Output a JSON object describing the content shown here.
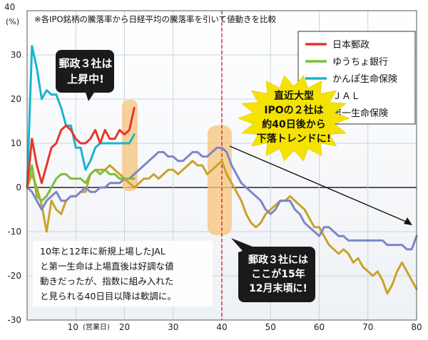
{
  "chart_data": {
    "type": "line",
    "title": "",
    "subtitle": "※各IPO銘柄の騰落率から日経平均の騰落率を引いて値動きを比較",
    "ylabel": "(%)",
    "xlabel": "(営業日)",
    "ylim": [
      -30,
      40
    ],
    "xlim": [
      0,
      80
    ],
    "yticks": [
      -30,
      -20,
      -10,
      0,
      10,
      20,
      30,
      40
    ],
    "xticks": [
      10,
      20,
      30,
      40,
      50,
      60,
      70,
      80
    ],
    "grid": true,
    "legend": "top-right",
    "series": [
      {
        "name": "日本郵政",
        "color": "#e8352b",
        "x": [
          0,
          1,
          2,
          3,
          4,
          5,
          6,
          7,
          8,
          9,
          10,
          11,
          12,
          13,
          14,
          15,
          16,
          17,
          18,
          19,
          20,
          21,
          22
        ],
        "y": [
          0,
          11,
          5,
          1,
          5,
          9,
          10,
          13,
          14,
          13,
          11,
          10,
          10,
          11,
          13,
          10,
          13,
          11,
          11,
          13,
          12,
          13,
          18
        ]
      },
      {
        "name": "ゆうちょ銀行",
        "color": "#7cbf3a",
        "x": [
          0,
          1,
          2,
          3,
          4,
          5,
          6,
          7,
          8,
          9,
          10,
          11,
          12,
          13,
          14,
          15,
          16,
          17,
          18,
          19,
          20,
          21,
          22
        ],
        "y": [
          0,
          5,
          -2,
          -3,
          -2,
          0,
          2,
          3,
          3,
          2,
          2,
          2,
          1,
          3,
          4,
          3,
          4,
          3,
          3,
          2,
          2,
          2,
          2
        ]
      },
      {
        "name": "かんぽ生命保険",
        "color": "#19b4cf",
        "x": [
          0,
          1,
          2,
          3,
          4,
          5,
          6,
          7,
          8,
          9,
          10,
          11,
          12,
          13,
          14,
          15,
          16,
          17,
          18,
          19,
          20,
          21,
          22
        ],
        "y": [
          0,
          32,
          27,
          20,
          22,
          21,
          21,
          18,
          14,
          14,
          9,
          9,
          4,
          6,
          9,
          10,
          10,
          10,
          10,
          10,
          10,
          10,
          12
        ]
      },
      {
        "name": "ＪＡＬ",
        "color": "#c9a22a",
        "x": [
          0,
          1,
          2,
          3,
          4,
          5,
          6,
          7,
          8,
          9,
          10,
          11,
          12,
          13,
          14,
          15,
          16,
          17,
          18,
          19,
          20,
          21,
          22,
          23,
          24,
          25,
          26,
          27,
          28,
          29,
          30,
          31,
          32,
          33,
          34,
          35,
          36,
          37,
          38,
          39,
          40,
          41,
          42,
          43,
          44,
          45,
          46,
          47,
          48,
          49,
          50,
          51,
          52,
          53,
          54,
          55,
          56,
          57,
          58,
          59,
          60,
          61,
          62,
          63,
          64,
          65,
          66,
          67,
          68,
          69,
          70,
          71,
          72,
          73,
          74,
          75,
          76,
          77,
          78,
          79,
          80
        ],
        "y": [
          0,
          3,
          0,
          -4,
          -10,
          -3,
          -5,
          -6,
          -3,
          -2,
          -2,
          -1,
          -1,
          3,
          4,
          4,
          4,
          5,
          4,
          3,
          2,
          1,
          0,
          1,
          2,
          2,
          3,
          2,
          3,
          4,
          4,
          3,
          4,
          5,
          6,
          5,
          5,
          3,
          4,
          5,
          6,
          3,
          1,
          -1,
          -3,
          -6,
          -8,
          -9,
          -8,
          -6,
          -5,
          -4,
          -3,
          -3,
          -2,
          -3,
          -4,
          -5,
          -7,
          -9,
          -9,
          -11,
          -13,
          -14,
          -15,
          -14,
          -15,
          -17,
          -16,
          -18,
          -19,
          -20,
          -19,
          -21,
          -24,
          -22,
          -19,
          -17,
          -19,
          -21,
          -23
        ]
      },
      {
        "name": "第一生命保険",
        "color": "#7d86c8",
        "x": [
          0,
          1,
          2,
          3,
          4,
          5,
          6,
          7,
          8,
          9,
          10,
          11,
          12,
          13,
          14,
          15,
          16,
          17,
          18,
          19,
          20,
          21,
          22,
          23,
          24,
          25,
          26,
          27,
          28,
          29,
          30,
          31,
          32,
          33,
          34,
          35,
          36,
          37,
          38,
          39,
          40,
          41,
          42,
          43,
          44,
          45,
          46,
          47,
          48,
          49,
          50,
          51,
          52,
          53,
          54,
          55,
          56,
          57,
          58,
          59,
          60,
          61,
          62,
          63,
          64,
          65,
          66,
          67,
          68,
          69,
          70,
          71,
          72,
          73,
          74,
          75,
          76,
          77,
          78,
          79,
          80
        ],
        "y": [
          0,
          -1,
          -3,
          -5,
          -3,
          -2,
          -1,
          -3,
          -3,
          -2,
          -2,
          -1,
          0,
          -1,
          -1,
          0,
          0,
          1,
          1,
          1,
          2,
          2,
          3,
          4,
          5,
          6,
          7,
          8,
          8,
          7,
          7,
          6,
          6,
          7,
          8,
          8,
          7,
          7,
          8,
          9,
          9,
          8,
          5,
          3,
          1,
          0,
          -1,
          -2,
          -3,
          -5,
          -6,
          -5,
          -3,
          -3,
          -3,
          -5,
          -6,
          -8,
          -9,
          -10,
          -11,
          -9,
          -9,
          -10,
          -11,
          -11,
          -12,
          -12,
          -12,
          -12,
          -12,
          -12,
          -12,
          -12,
          -13,
          -13,
          -13,
          -13,
          -14,
          -14,
          -11
        ]
      }
    ],
    "annotations": {
      "bubble_top_left": [
        "郵政３社は",
        "上昇中!"
      ],
      "burst_right": [
        "直近大型",
        "IPOの２社は",
        "約40日後から",
        "下落トレンドに!"
      ],
      "bubble_bottom": [
        "郵政３社には",
        "ここが15年",
        "12月末頃に!"
      ],
      "bottom_note": [
        "10年と12年に新規上場したJAL",
        "と第一生命は上場直後は好調な値",
        "動きだったが、指数に組み入れた",
        "と見られる40日目以降は軟調に。"
      ]
    }
  }
}
